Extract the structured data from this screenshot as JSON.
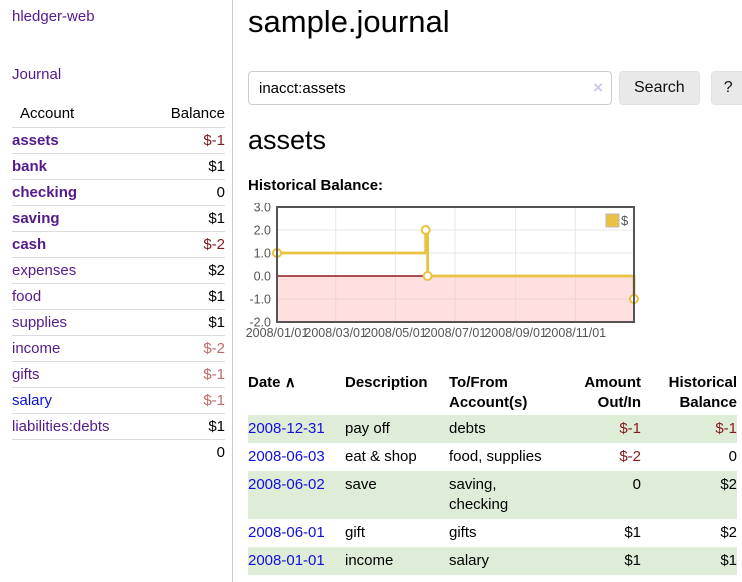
{
  "app": {
    "brand": "hledger-web",
    "nav_journal": "Journal"
  },
  "sidebar": {
    "header": {
      "account": "Account",
      "balance": "Balance"
    },
    "accounts": [
      {
        "name": "assets",
        "balance": "$-1"
      },
      {
        "name": "bank",
        "balance": "$1"
      },
      {
        "name": "checking",
        "balance": "0"
      },
      {
        "name": "saving",
        "balance": "$1"
      },
      {
        "name": "cash",
        "balance": "$-2"
      },
      {
        "name": "expenses",
        "balance": "$2"
      },
      {
        "name": "food",
        "balance": "$1"
      },
      {
        "name": "supplies",
        "balance": "$1"
      },
      {
        "name": "income",
        "balance": "$-2"
      },
      {
        "name": "gifts",
        "balance": "$-1"
      },
      {
        "name": "salary",
        "balance": "$-1"
      },
      {
        "name": "liabilities:debts",
        "balance": "$1"
      }
    ],
    "total": "0"
  },
  "main": {
    "title": "sample.journal",
    "search": {
      "value": "inacct:assets",
      "clear_icon": "×",
      "button_label": "Search",
      "help_label": "?"
    },
    "account_heading": "assets",
    "chart_label": "Historical Balance:",
    "table": {
      "headers": {
        "date": "Date",
        "sort_arrow": "∧",
        "description": "Description",
        "to_from": "To/From Account(s)",
        "amount": "Amount Out/In",
        "historical": "Historical Balance"
      },
      "rows": [
        {
          "date": "2008-12-31",
          "description": "pay off",
          "to_from": "debts",
          "amount": "$-1",
          "historical": "$-1"
        },
        {
          "date": "2008-06-03",
          "description": "eat & shop",
          "to_from": "food, supplies",
          "amount": "$-2",
          "historical": "0"
        },
        {
          "date": "2008-06-02",
          "description": "save",
          "to_from": "saving,\nchecking",
          "amount": "0",
          "historical": "$2"
        },
        {
          "date": "2008-06-01",
          "description": "gift",
          "to_from": "gifts",
          "amount": "$1",
          "historical": "$2"
        },
        {
          "date": "2008-01-01",
          "description": "income",
          "to_from": "salary",
          "amount": "$1",
          "historical": "$1"
        }
      ]
    }
  },
  "chart_data": {
    "type": "line",
    "step": true,
    "title": "Historical Balance",
    "series": [
      {
        "name": "$",
        "color": "#e8c240",
        "dates": [
          "2008-01-01",
          "2008-06-01",
          "2008-06-03",
          "2008-12-31"
        ],
        "x_days": [
          0,
          152,
          154,
          365
        ],
        "values": [
          1,
          2,
          0,
          -1
        ]
      }
    ],
    "x_ticks": [
      {
        "label": "2008/01/01",
        "day": 0
      },
      {
        "label": "2008/03/01",
        "day": 60
      },
      {
        "label": "2008/05/01",
        "day": 121
      },
      {
        "label": "2008/07/01",
        "day": 182
      },
      {
        "label": "2008/09/01",
        "day": 244
      },
      {
        "label": "2008/11/01",
        "day": 305
      }
    ],
    "y_ticks": [
      "3.0",
      "2.0",
      "1.0",
      "0.0",
      "-1.0",
      "-2.0"
    ],
    "y_tick_values": [
      3,
      2,
      1,
      0,
      -1,
      -2
    ],
    "xlim_days": [
      0,
      365
    ],
    "ylim": [
      -2,
      3
    ],
    "grid": true,
    "legend": {
      "label": "$",
      "position": "top-right"
    },
    "colors": {
      "line": "#e8c240",
      "marker_fill": "#ffffff",
      "negative_region": "#ffb9b9",
      "zero_line": "#8b1a1a",
      "gridline": "#e7e7e7",
      "border": "#545454",
      "axis_text": "#545454"
    }
  },
  "colors": {
    "link_visited_purple": "#551A8B",
    "link_blue": "#0f0fdd",
    "negative_dark": "#861919",
    "negative_light": "#c26868",
    "row_green": "#dfedd8",
    "accent_gold": "#e8c240"
  }
}
